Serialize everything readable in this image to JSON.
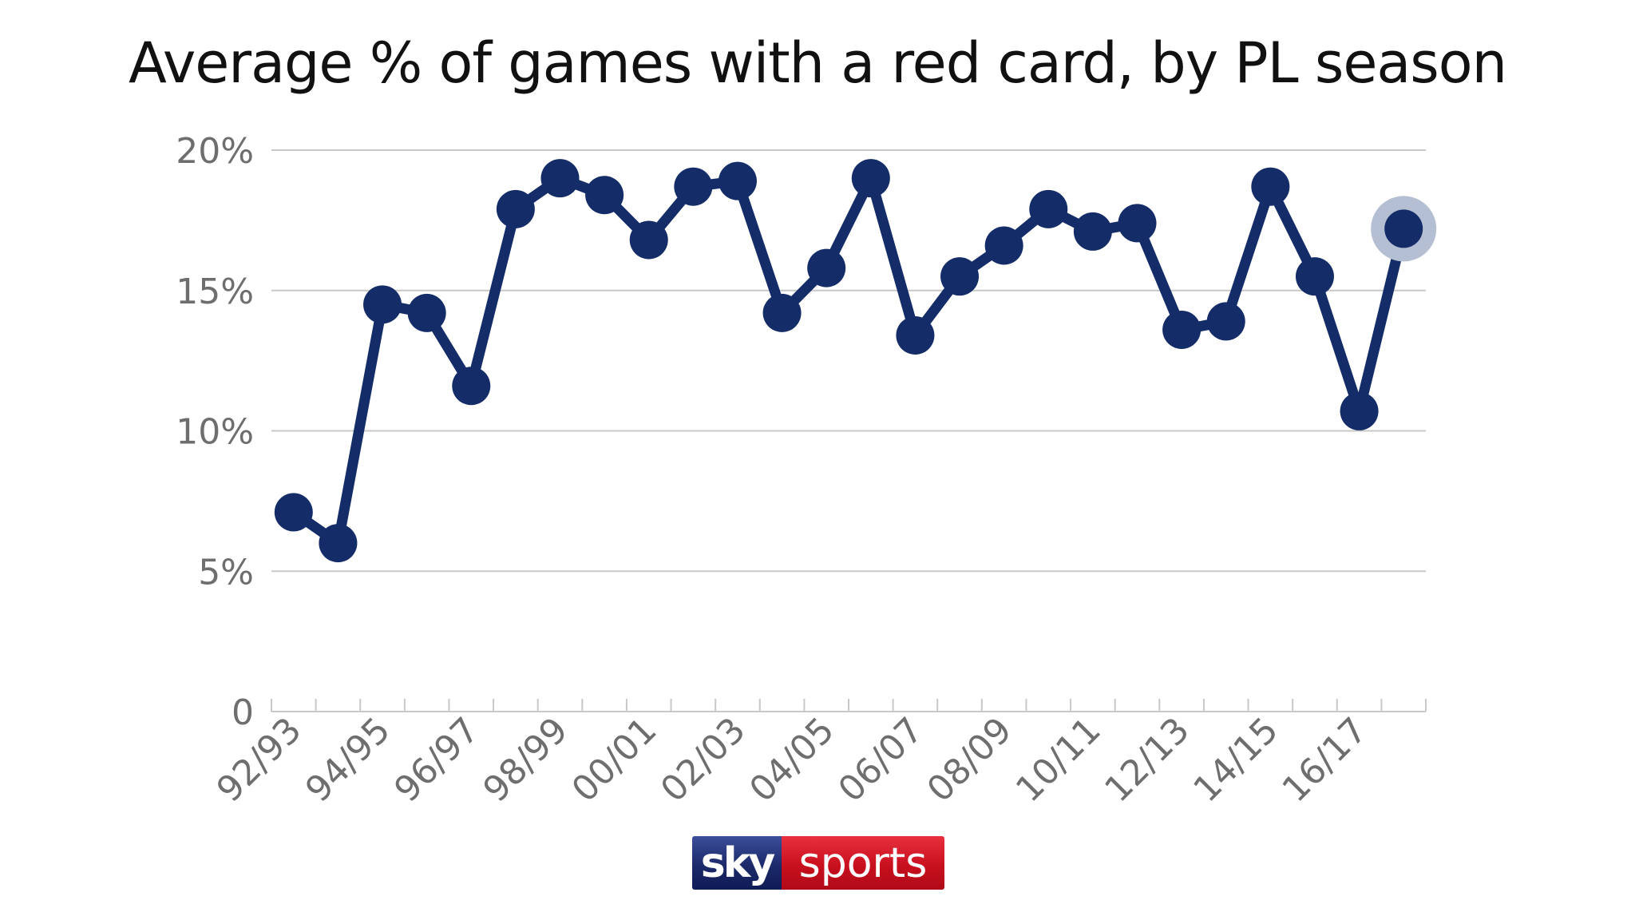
{
  "chart_data": {
    "type": "line",
    "title": "Average % of games with a red card, by PL season",
    "xlabel": "",
    "ylabel": "",
    "ylim": [
      0,
      20
    ],
    "yticks": [
      0,
      5,
      10,
      15,
      20
    ],
    "ytick_labels": [
      "0",
      "5%",
      "10%",
      "15%",
      "20%"
    ],
    "grid": true,
    "categories": [
      "92/93",
      "93/94",
      "94/95",
      "95/96",
      "96/97",
      "97/98",
      "98/99",
      "99/00",
      "00/01",
      "01/02",
      "02/03",
      "03/04",
      "04/05",
      "05/06",
      "06/07",
      "07/08",
      "08/09",
      "09/10",
      "10/11",
      "11/12",
      "12/13",
      "13/14",
      "14/15",
      "15/16",
      "16/17",
      "17/18"
    ],
    "xtick_labels": [
      "92/93",
      "94/95",
      "96/97",
      "98/99",
      "00/01",
      "02/03",
      "04/05",
      "06/07",
      "08/09",
      "10/11",
      "12/13",
      "14/15",
      "16/17"
    ],
    "values": [
      7.1,
      6.0,
      14.5,
      14.2,
      11.6,
      17.9,
      19.0,
      18.4,
      16.8,
      18.7,
      18.9,
      14.2,
      15.8,
      19.0,
      13.4,
      15.5,
      16.6,
      17.9,
      17.1,
      17.4,
      13.6,
      13.9,
      18.7,
      15.5,
      10.7,
      17.2
    ],
    "highlight_index": 25,
    "colors": {
      "line": "#142c68",
      "highlight_halo": "#b5bfd3",
      "grid": "#c8c8c8",
      "tick_text": "#6e6e6e"
    }
  },
  "logo": {
    "part1": "sky",
    "part2": "sports",
    "colors": {
      "sky": "#1c2a6a",
      "sports": "#c8101e"
    }
  }
}
